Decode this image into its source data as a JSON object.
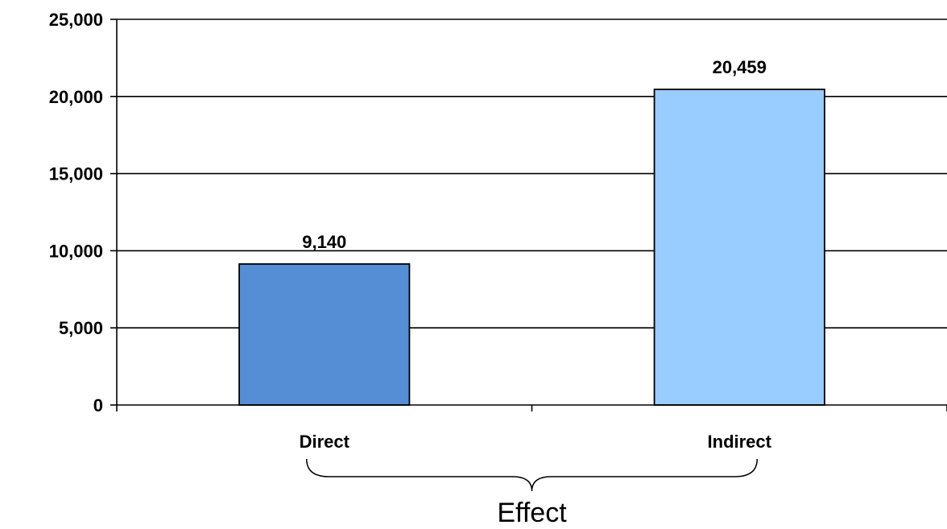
{
  "chart_data": {
    "type": "bar",
    "categories": [
      "Direct",
      "Indirect"
    ],
    "values": [
      9140,
      20459
    ],
    "value_labels": [
      "9,140",
      "20,459"
    ],
    "ylim": [
      0,
      25000
    ],
    "yticks": [
      0,
      5000,
      10000,
      15000,
      20000,
      25000
    ],
    "ytick_labels": [
      "0",
      "5,000",
      "10,000",
      "15,000",
      "20,000",
      "25,000"
    ],
    "xlabel": "Effect",
    "ylabel": "",
    "title": "",
    "grid": true,
    "legend": "none",
    "bar_colors": [
      "#558ed5",
      "#99ccff"
    ]
  }
}
